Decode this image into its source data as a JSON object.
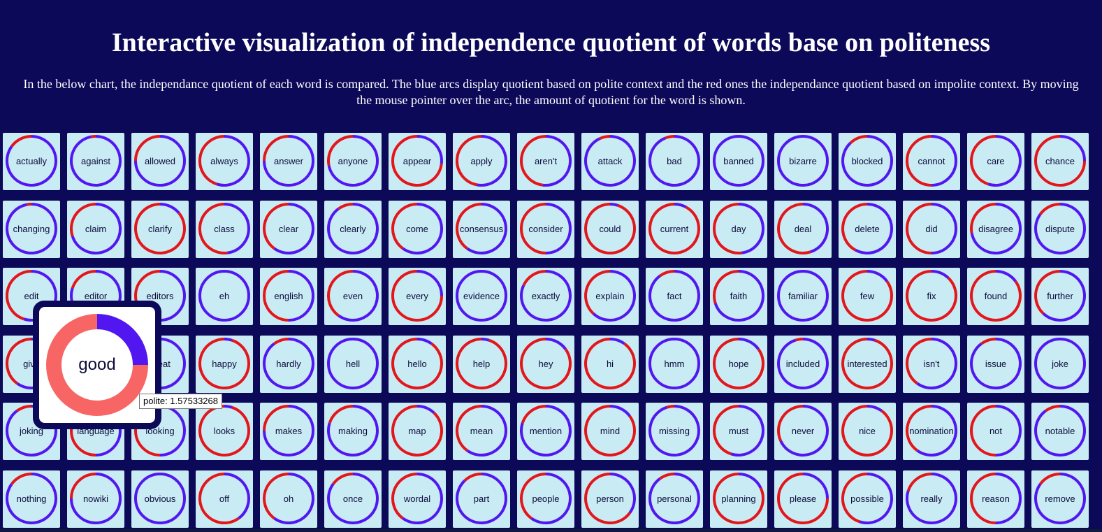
{
  "title": "Interactive visualization of independence quotient of words base on politeness",
  "description": "In the below chart, the independance quotient of each word is compared. The blue arcs display quotient based on polite context and the red ones the independance quotient based on impolite context. By moving the mouse pointer over the arc, the amount of quotient for the word is shown.",
  "colors": {
    "background": "#0c0959",
    "tile": "#c9ebf4",
    "polite_arc": "#5217f0",
    "impolite_arc": "#e3161b",
    "popup_polite_arc": "#5217f0",
    "popup_impolite_arc": "#f76565"
  },
  "rows": [
    [
      {
        "word": "actually",
        "polite": 0.85
      },
      {
        "word": "against",
        "polite": 0.97
      },
      {
        "word": "allowed",
        "polite": 0.75
      },
      {
        "word": "always",
        "polite": 0.55
      },
      {
        "word": "answer",
        "polite": 0.75
      },
      {
        "word": "anyone",
        "polite": 0.72
      },
      {
        "word": "appear",
        "polite": 0.27
      },
      {
        "word": "apply",
        "polite": 0.53
      },
      {
        "word": "aren't",
        "polite": 0.52
      },
      {
        "word": "attack",
        "polite": 0.93
      },
      {
        "word": "bad",
        "polite": 0.94
      },
      {
        "word": "banned",
        "polite": 1.0
      },
      {
        "word": "bizarre",
        "polite": 1.0
      },
      {
        "word": "blocked",
        "polite": 0.88
      },
      {
        "word": "cannot",
        "polite": 0.5
      },
      {
        "word": "care",
        "polite": 0.55
      },
      {
        "word": "chance",
        "polite": 0.25
      }
    ],
    [
      {
        "word": "changing",
        "polite": 0.97
      },
      {
        "word": "claim",
        "polite": 0.7
      },
      {
        "word": "clarify",
        "polite": 0.14
      },
      {
        "word": "class",
        "polite": 0.48
      },
      {
        "word": "clear",
        "polite": 0.6
      },
      {
        "word": "clearly",
        "polite": 0.9
      },
      {
        "word": "come",
        "polite": 0.6
      },
      {
        "word": "consensus",
        "polite": 0.6
      },
      {
        "word": "consider",
        "polite": 0.5
      },
      {
        "word": "could",
        "polite": 0.05
      },
      {
        "word": "current",
        "polite": 0.08
      },
      {
        "word": "day",
        "polite": 0.48
      },
      {
        "word": "deal",
        "polite": 0.45
      },
      {
        "word": "delete",
        "polite": 0.58
      },
      {
        "word": "did",
        "polite": 0.5
      },
      {
        "word": "disagree",
        "polite": 0.72
      },
      {
        "word": "dispute",
        "polite": 0.85
      }
    ],
    [
      {
        "word": "edit",
        "polite": 0.55
      },
      {
        "word": "editor",
        "polite": 0.8
      },
      {
        "word": "editors",
        "polite": 0.5
      },
      {
        "word": "eh",
        "polite": 1.0
      },
      {
        "word": "english",
        "polite": 0.5
      },
      {
        "word": "even",
        "polite": 0.6
      },
      {
        "word": "every",
        "polite": 0.25
      },
      {
        "word": "evidence",
        "polite": 1.0
      },
      {
        "word": "exactly",
        "polite": 0.82
      },
      {
        "word": "explain",
        "polite": 0.62
      },
      {
        "word": "fact",
        "polite": 0.9
      },
      {
        "word": "faith",
        "polite": 0.7
      },
      {
        "word": "familiar",
        "polite": 1.0
      },
      {
        "word": "few",
        "polite": 0.15
      },
      {
        "word": "fix",
        "polite": 0.12
      },
      {
        "word": "found",
        "polite": 0.15
      },
      {
        "word": "further",
        "polite": 0.62
      }
    ],
    [
      {
        "word": "give",
        "polite": 0.6
      },
      {
        "word": "good",
        "polite": 0.25
      },
      {
        "word": "great",
        "polite": 0.5
      },
      {
        "word": "happy",
        "polite": 0.05
      },
      {
        "word": "hardly",
        "polite": 0.9
      },
      {
        "word": "hell",
        "polite": 1.0
      },
      {
        "word": "hello",
        "polite": 0.1
      },
      {
        "word": "help",
        "polite": 0.05
      },
      {
        "word": "hey",
        "polite": 0.15
      },
      {
        "word": "hi",
        "polite": 0.1
      },
      {
        "word": "hmm",
        "polite": 1.0
      },
      {
        "word": "hope",
        "polite": 0.15
      },
      {
        "word": "included",
        "polite": 0.95
      },
      {
        "word": "interested",
        "polite": 0.05
      },
      {
        "word": "isn't",
        "polite": 0.6
      },
      {
        "word": "issue",
        "polite": 0.9
      },
      {
        "word": "joke",
        "polite": 1.0
      }
    ],
    [
      {
        "word": "joking",
        "polite": 0.9
      },
      {
        "word": "language",
        "polite": 0.5
      },
      {
        "word": "looking",
        "polite": 0.5
      },
      {
        "word": "looks",
        "polite": 0.05
      },
      {
        "word": "makes",
        "polite": 0.75
      },
      {
        "word": "making",
        "polite": 0.8
      },
      {
        "word": "map",
        "polite": 0.12
      },
      {
        "word": "mean",
        "polite": 0.6
      },
      {
        "word": "mention",
        "polite": 0.8
      },
      {
        "word": "mind",
        "polite": 0.15
      },
      {
        "word": "missing",
        "polite": 0.95
      },
      {
        "word": "must",
        "polite": 0.55
      },
      {
        "word": "never",
        "polite": 0.68
      },
      {
        "word": "nice",
        "polite": 0.1
      },
      {
        "word": "nomination",
        "polite": 0.6
      },
      {
        "word": "not",
        "polite": 0.5
      },
      {
        "word": "notable",
        "polite": 0.9
      }
    ],
    [
      {
        "word": "nothing",
        "polite": 0.85
      },
      {
        "word": "nowiki",
        "polite": 0.75
      },
      {
        "word": "obvious",
        "polite": 1.0
      },
      {
        "word": "off",
        "polite": 0.4
      },
      {
        "word": "oh",
        "polite": 0.6
      },
      {
        "word": "once",
        "polite": 0.85
      },
      {
        "word": "wordal",
        "polite": 0.6
      },
      {
        "word": "part",
        "polite": 0.88
      },
      {
        "word": "people",
        "polite": 0.6
      },
      {
        "word": "person",
        "polite": 0.35
      },
      {
        "word": "personal",
        "polite": 0.9
      },
      {
        "word": "planning",
        "polite": 0.18
      },
      {
        "word": "please",
        "polite": 0.25
      },
      {
        "word": "possible",
        "polite": 0.55
      },
      {
        "word": "really",
        "polite": 0.8
      },
      {
        "word": "reason",
        "polite": 0.5
      },
      {
        "word": "remove",
        "polite": 0.85
      }
    ]
  ],
  "popup": {
    "word": "good",
    "polite": 0.25
  },
  "tooltip": "polite: 1.57533268"
}
